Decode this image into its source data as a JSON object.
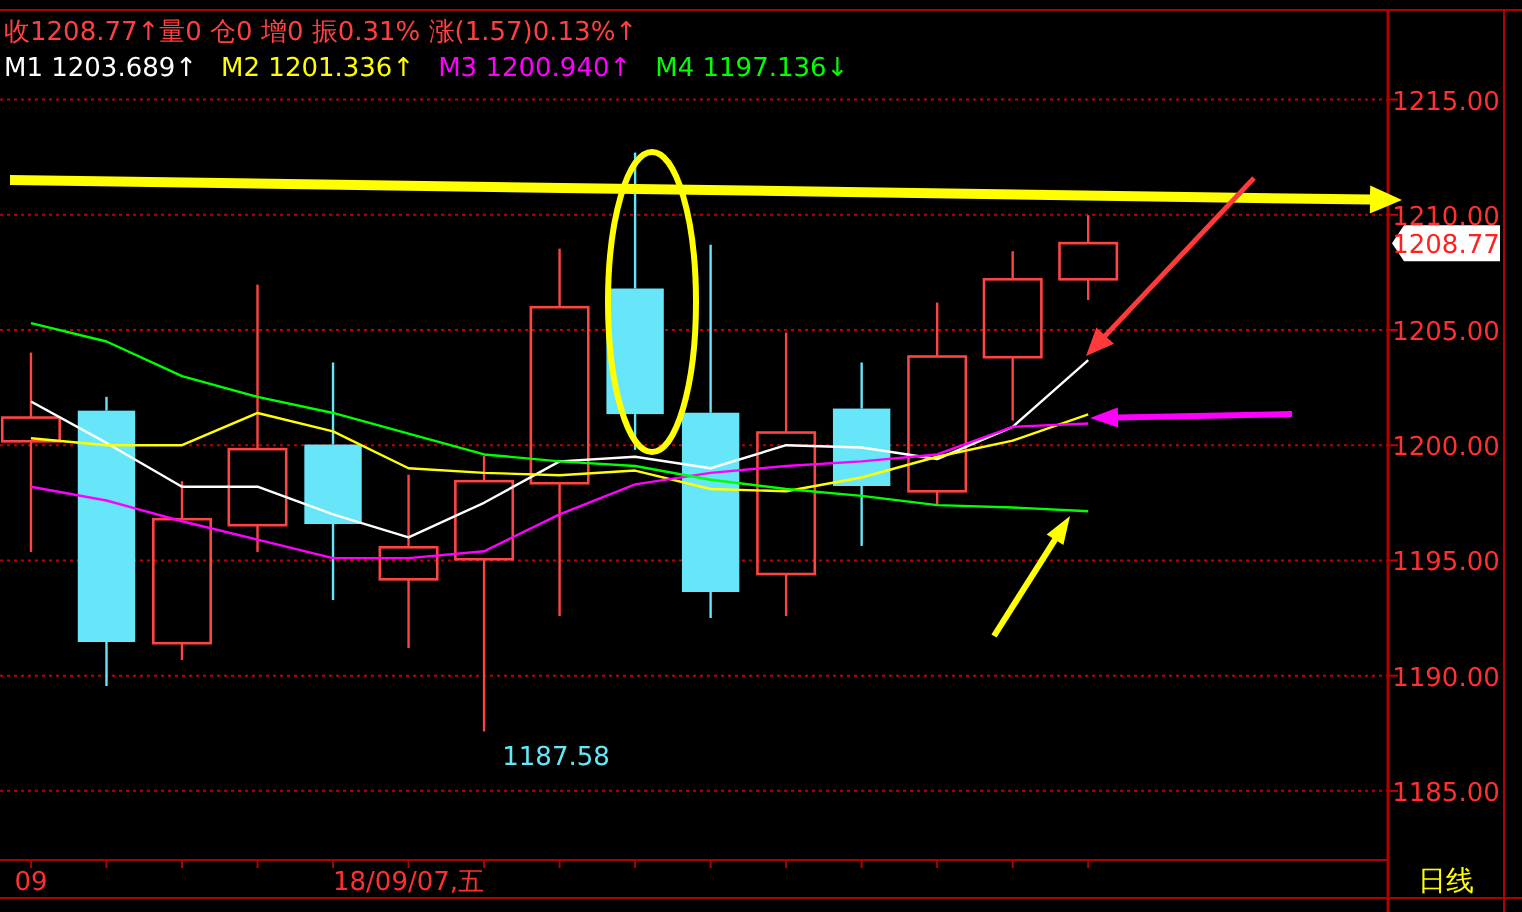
{
  "chart_data": {
    "type": "candlestick",
    "title": "收1208.77↑量0 仓0 增0 振0.31% 涨(1.57)0.13%↑",
    "categories": [
      "09",
      null,
      null,
      null,
      null,
      "18/09/07,五",
      null,
      null,
      null,
      null,
      null,
      null,
      null,
      null,
      null
    ],
    "ohlc": [
      [
        1200.17,
        1204.02,
        1195.37,
        1201.2
      ],
      [
        1201.5,
        1202.1,
        1189.55,
        1191.46
      ],
      [
        1191.41,
        1198.44,
        1190.68,
        1196.79
      ],
      [
        1196.53,
        1206.97,
        1195.37,
        1199.83
      ],
      [
        1200.03,
        1203.59,
        1193.28,
        1196.58
      ],
      [
        1194.18,
        1198.72,
        1191.2,
        1195.57
      ],
      [
        1195.05,
        1199.53,
        1187.58,
        1198.44
      ],
      [
        1198.35,
        1208.53,
        1192.59,
        1205.99
      ],
      [
        1206.8,
        1212.7,
        1199.8,
        1201.35
      ],
      [
        1201.41,
        1208.7,
        1192.5,
        1193.63
      ],
      [
        1194.41,
        1204.89,
        1192.59,
        1200.55
      ],
      [
        1201.59,
        1203.59,
        1195.63,
        1198.23
      ],
      [
        1198.0,
        1206.19,
        1197.42,
        1203.85
      ],
      [
        1203.82,
        1208.42,
        1201.07,
        1207.2
      ],
      [
        1207.2,
        1209.98,
        1206.3,
        1208.77
      ]
    ],
    "colors": [
      "#ff4444",
      "#66e6f8",
      "#ff4444",
      "#ff4444",
      "#66e6f8",
      "#ff4444",
      "#ff4444",
      "#ff4444",
      "#66e6f8",
      "#66e6f8",
      "#ff4444",
      "#66e6f8",
      "#ff4444",
      "#ff4444",
      "#ff4444"
    ],
    "series": [
      {
        "type": "line",
        "name": "M1 1203.689↑",
        "color": "#ffffff",
        "values": [
          1201.9,
          1200.1,
          1198.2,
          1198.2,
          1197.0,
          1196.0,
          1197.5,
          1199.3,
          1199.5,
          1199.0,
          1200.0,
          1199.9,
          1199.4,
          1200.8,
          1203.689
        ]
      },
      {
        "type": "line",
        "name": "M2 1201.336↑",
        "color": "#ffff00",
        "values": [
          1200.3,
          1200.0,
          1200.0,
          1201.4,
          1200.6,
          1199.0,
          1198.8,
          1198.7,
          1198.9,
          1198.1,
          1198.0,
          1198.6,
          1199.5,
          1200.2,
          1201.336
        ]
      },
      {
        "type": "line",
        "name": "M3 1200.940↑",
        "color": "#ff00ff",
        "values": [
          1198.2,
          1197.6,
          1196.7,
          1195.9,
          1195.1,
          1195.1,
          1195.4,
          1197.0,
          1198.3,
          1198.8,
          1199.1,
          1199.3,
          1199.6,
          1200.8,
          1200.94
        ]
      },
      {
        "type": "line",
        "name": "M4 1197.136↓",
        "color": "#00ff00",
        "values": [
          1205.3,
          1204.5,
          1203.0,
          1202.1,
          1201.4,
          1200.5,
          1199.6,
          1199.3,
          1199.1,
          1198.5,
          1198.1,
          1197.8,
          1197.4,
          1197.3,
          1197.136
        ]
      }
    ],
    "ylim": [
      1182,
      1218.8
    ],
    "yticks": [
      {
        "value": 1185,
        "label": "1185.00"
      },
      {
        "value": 1190,
        "label": "1190.00"
      },
      {
        "value": 1195,
        "label": "1195.00"
      },
      {
        "value": 1200,
        "label": "1200.00"
      },
      {
        "value": 1205,
        "label": "1205.00"
      },
      {
        "value": 1210,
        "label": "1210.00"
      },
      {
        "value": 1215,
        "label": "1215.00"
      }
    ],
    "grid": "y",
    "legend": "top left",
    "marker": "none",
    "line_style": "solid",
    "annotations": [
      "1187.58",
      "1208.77",
      "日线"
    ]
  }
}
